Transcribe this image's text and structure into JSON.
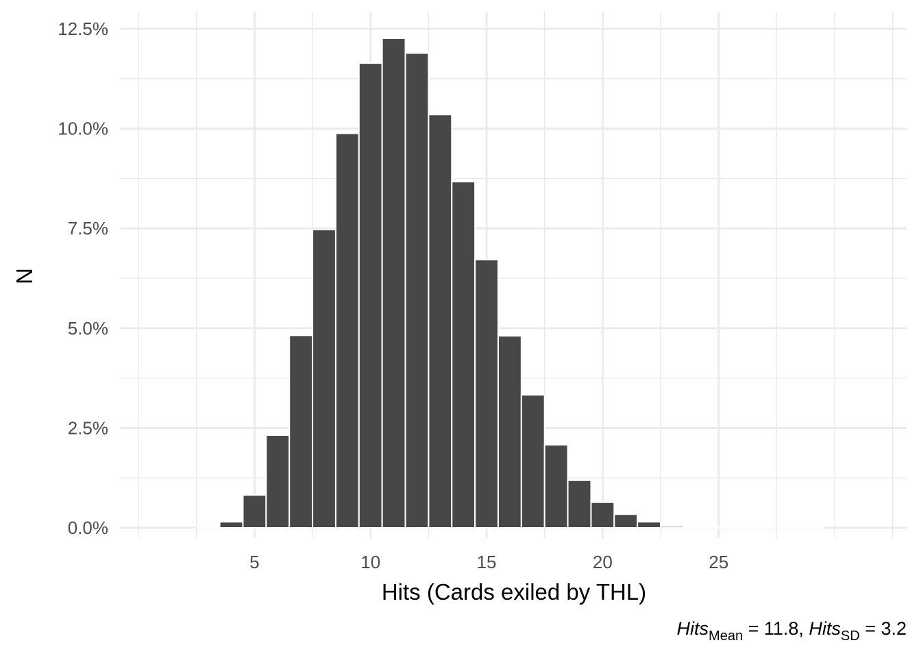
{
  "chart_data": {
    "type": "bar",
    "x": [
      3,
      4,
      5,
      6,
      7,
      8,
      9,
      10,
      11,
      12,
      13,
      14,
      15,
      16,
      17,
      18,
      19,
      20,
      21,
      22,
      23,
      24,
      25,
      26,
      27,
      28,
      29
    ],
    "values": [
      0.01,
      0.15,
      0.82,
      2.32,
      4.82,
      7.47,
      9.88,
      11.64,
      12.26,
      11.89,
      10.35,
      8.67,
      6.72,
      4.81,
      3.33,
      2.08,
      1.19,
      0.64,
      0.34,
      0.15,
      0.04,
      0.01,
      0.01,
      0.01,
      0.01,
      0.01,
      0.01
    ],
    "xlabel": "Hits (Cards exiled by THL)",
    "ylabel": "N",
    "xlim": [
      -0.8,
      33.1
    ],
    "ylim": [
      -0.6,
      12.5
    ],
    "x_ticks": [
      5,
      10,
      15,
      20,
      25
    ],
    "x_tick_labels": [
      "5",
      "10",
      "15",
      "20",
      "25"
    ],
    "y_ticks": [
      0,
      2.5,
      5,
      7.5,
      10,
      12.5
    ],
    "y_tick_labels": [
      "0.0%",
      "2.5%",
      "5.0%",
      "7.5%",
      "10.0%",
      "12.5%"
    ],
    "grid": true,
    "legend": "none",
    "caption": {
      "part1": "Hits",
      "sub1": "Mean",
      "part2": " = 11.8, ",
      "part3": "Hits",
      "sub2": "SD",
      "part4": " = 3.2"
    },
    "colors": {
      "bar": "#474747",
      "grid": "#ebebeb",
      "tick_text": "#4d4d4d"
    }
  }
}
